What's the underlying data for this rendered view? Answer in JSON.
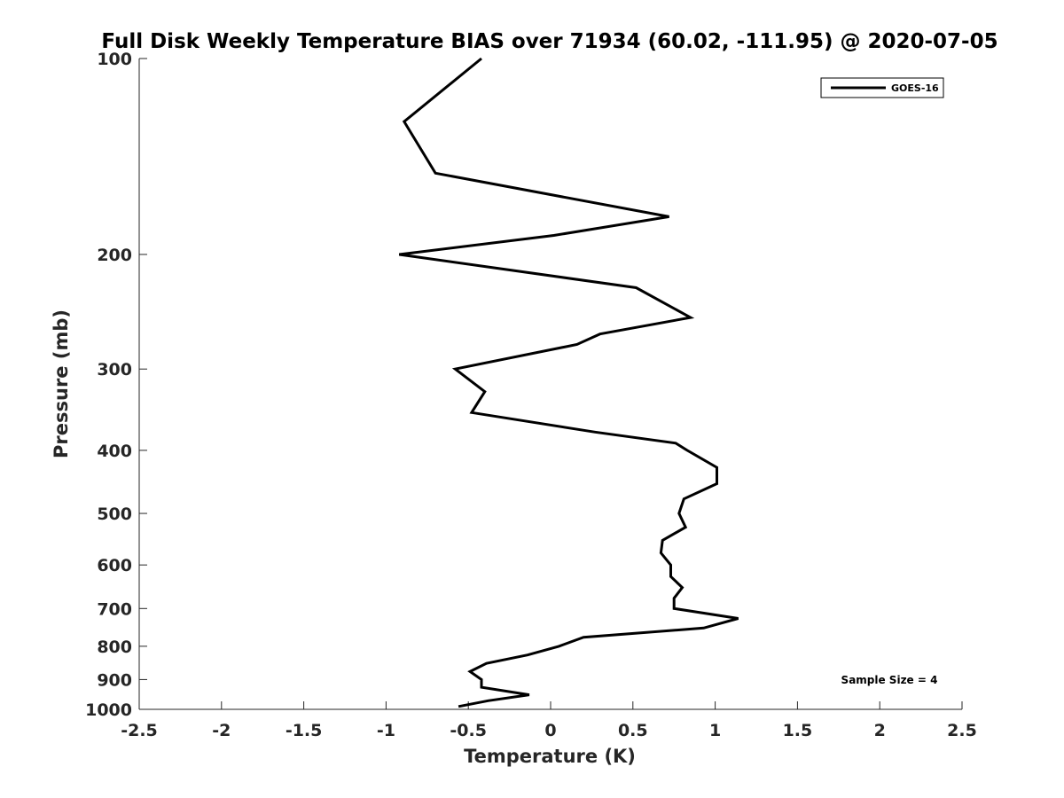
{
  "chart_data": {
    "type": "line",
    "title": "Full Disk Weekly Temperature BIAS over 71934 (60.02, -111.95) @ 2020-07-05",
    "xlabel": "Temperature (K)",
    "ylabel": "Pressure (mb)",
    "xlim": [
      -2.5,
      2.5
    ],
    "ylim": [
      100,
      1000
    ],
    "y_scale": "log",
    "y_reversed": true,
    "grid": false,
    "legend_position": "top-right",
    "x_ticks": [
      -2.5,
      -2,
      -1.5,
      -1,
      -0.5,
      0,
      0.5,
      1,
      1.5,
      2,
      2.5
    ],
    "x_tick_labels": [
      "-2.5",
      "-2",
      "-1.5",
      "-1",
      "-0.5",
      "0",
      "0.5",
      "1",
      "1.5",
      "2",
      "2.5"
    ],
    "y_ticks": [
      100,
      200,
      300,
      400,
      500,
      600,
      700,
      800,
      900,
      1000
    ],
    "y_tick_labels": [
      "100",
      "200",
      "300",
      "400",
      "500",
      "600",
      "700",
      "800",
      "900",
      "1000"
    ],
    "series": [
      {
        "name": "GOES-16",
        "color": "#000000",
        "points": [
          {
            "t": -0.42,
            "p": 100
          },
          {
            "t": -0.89,
            "p": 125
          },
          {
            "t": -0.7,
            "p": 150
          },
          {
            "t": 0.72,
            "p": 175
          },
          {
            "t": 0.02,
            "p": 187
          },
          {
            "t": -0.92,
            "p": 200
          },
          {
            "t": 0.52,
            "p": 225
          },
          {
            "t": 0.85,
            "p": 250
          },
          {
            "t": 0.3,
            "p": 265
          },
          {
            "t": 0.16,
            "p": 275
          },
          {
            "t": -0.58,
            "p": 300
          },
          {
            "t": -0.4,
            "p": 325
          },
          {
            "t": -0.48,
            "p": 350
          },
          {
            "t": 0.27,
            "p": 375
          },
          {
            "t": 0.76,
            "p": 390
          },
          {
            "t": 0.83,
            "p": 400
          },
          {
            "t": 1.01,
            "p": 425
          },
          {
            "t": 1.01,
            "p": 450
          },
          {
            "t": 0.81,
            "p": 475
          },
          {
            "t": 0.78,
            "p": 500
          },
          {
            "t": 0.82,
            "p": 525
          },
          {
            "t": 0.68,
            "p": 550
          },
          {
            "t": 0.67,
            "p": 575
          },
          {
            "t": 0.73,
            "p": 600
          },
          {
            "t": 0.73,
            "p": 625
          },
          {
            "t": 0.8,
            "p": 650
          },
          {
            "t": 0.75,
            "p": 675
          },
          {
            "t": 0.75,
            "p": 700
          },
          {
            "t": 1.14,
            "p": 725
          },
          {
            "t": 0.93,
            "p": 750
          },
          {
            "t": 0.2,
            "p": 775
          },
          {
            "t": 0.05,
            "p": 800
          },
          {
            "t": -0.14,
            "p": 825
          },
          {
            "t": -0.39,
            "p": 850
          },
          {
            "t": -0.49,
            "p": 875
          },
          {
            "t": -0.42,
            "p": 900
          },
          {
            "t": -0.42,
            "p": 925
          },
          {
            "t": -0.13,
            "p": 950
          },
          {
            "t": -0.38,
            "p": 970
          },
          {
            "t": -0.56,
            "p": 990
          }
        ]
      }
    ],
    "annotation": "Sample Size = 4"
  }
}
